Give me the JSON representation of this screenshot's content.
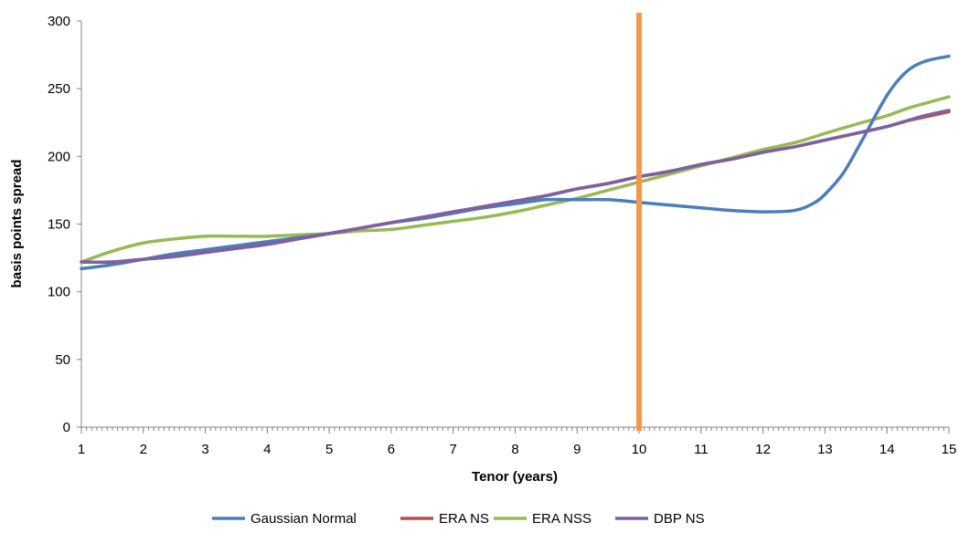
{
  "colors": {
    "series_gaussian": "#4a7ebb",
    "series_era_ns": "#be4b48",
    "series_era_nss": "#98b954",
    "series_dbp_ns": "#7d60a0",
    "marker_line": "#f79646",
    "axis": "#868686"
  },
  "chart_data": {
    "type": "line",
    "title": "",
    "xlabel": "Tenor (years)",
    "ylabel": "basis points spread",
    "xlim": [
      1,
      15
    ],
    "ylim": [
      0,
      300
    ],
    "x_ticks": [
      1,
      2,
      3,
      4,
      5,
      6,
      7,
      8,
      9,
      10,
      11,
      12,
      13,
      14,
      15
    ],
    "y_ticks": [
      0,
      50,
      100,
      150,
      200,
      250,
      300
    ],
    "grid": false,
    "legend_position": "bottom",
    "vertical_marker_x": 10,
    "x": [
      1,
      1.5,
      2,
      2.5,
      3,
      3.5,
      4,
      4.5,
      5,
      5.5,
      6,
      6.5,
      7,
      7.5,
      8,
      8.5,
      9,
      9.5,
      10,
      10.5,
      11,
      11.5,
      12,
      12.5,
      12.8,
      13,
      13.3,
      13.6,
      14,
      14.3,
      14.6,
      15
    ],
    "series": [
      {
        "name": "Gaussian Normal",
        "values": [
          117,
          120,
          124,
          128,
          131,
          134,
          137,
          140,
          143,
          147,
          151,
          154,
          158,
          162,
          165,
          168,
          168,
          168,
          166,
          164,
          162,
          160,
          159,
          160,
          165,
          172,
          188,
          212,
          245,
          262,
          270,
          274
        ]
      },
      {
        "name": "ERA NS",
        "values": [
          122,
          122,
          124,
          126,
          129,
          132,
          135,
          139,
          143,
          147,
          151,
          155,
          159,
          163,
          167,
          171,
          176,
          180,
          185,
          189,
          194,
          198,
          203,
          207,
          210,
          212,
          215,
          218,
          222,
          226,
          229,
          233
        ]
      },
      {
        "name": "ERA NSS",
        "values": [
          122,
          130,
          136,
          139,
          141,
          141,
          141,
          142,
          143,
          145,
          146,
          149,
          152,
          155,
          159,
          164,
          169,
          175,
          181,
          187,
          193,
          199,
          205,
          210,
          214,
          217,
          221,
          225,
          230,
          235,
          239,
          244
        ]
      },
      {
        "name": "DBP NS",
        "values": [
          122,
          122,
          124,
          126,
          129,
          132,
          135,
          139,
          143,
          147,
          151,
          155,
          159,
          163,
          167,
          171,
          176,
          180,
          185,
          189,
          194,
          198,
          203,
          207,
          210,
          212,
          215,
          218,
          222,
          226,
          230,
          234
        ]
      }
    ]
  }
}
